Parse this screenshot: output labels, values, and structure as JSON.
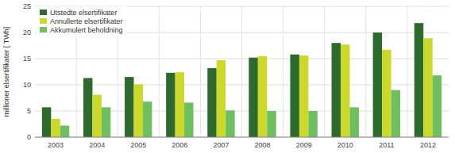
{
  "chart_data": {
    "type": "bar",
    "ylabel": "millioner elsertifikater [ TWh]",
    "categories": [
      "2003",
      "2004",
      "2005",
      "2006",
      "2007",
      "2008",
      "2009",
      "2010",
      "2011",
      "2012"
    ],
    "series": [
      {
        "name": "Utstedte elsertifikater",
        "color": "#2d6a2d",
        "values": [
          5.7,
          11.3,
          11.5,
          12.3,
          13.2,
          15.2,
          15.8,
          18.0,
          20.0,
          21.8
        ]
      },
      {
        "name": "Annullerte elsertifikater",
        "color": "#ccd92a",
        "values": [
          3.5,
          8.1,
          10.1,
          12.4,
          14.7,
          15.5,
          15.6,
          17.7,
          16.7,
          18.9
        ]
      },
      {
        "name": "Akkumulert beholdning",
        "color": "#6dbf5f",
        "values": [
          2.2,
          5.7,
          6.8,
          6.6,
          5.1,
          5.0,
          5.0,
          5.7,
          9.0,
          11.8
        ]
      }
    ],
    "ylim": [
      0,
      25
    ],
    "yticks": [
      0,
      5,
      10,
      15,
      20,
      25
    ],
    "grid": true,
    "legend": "upper left"
  }
}
